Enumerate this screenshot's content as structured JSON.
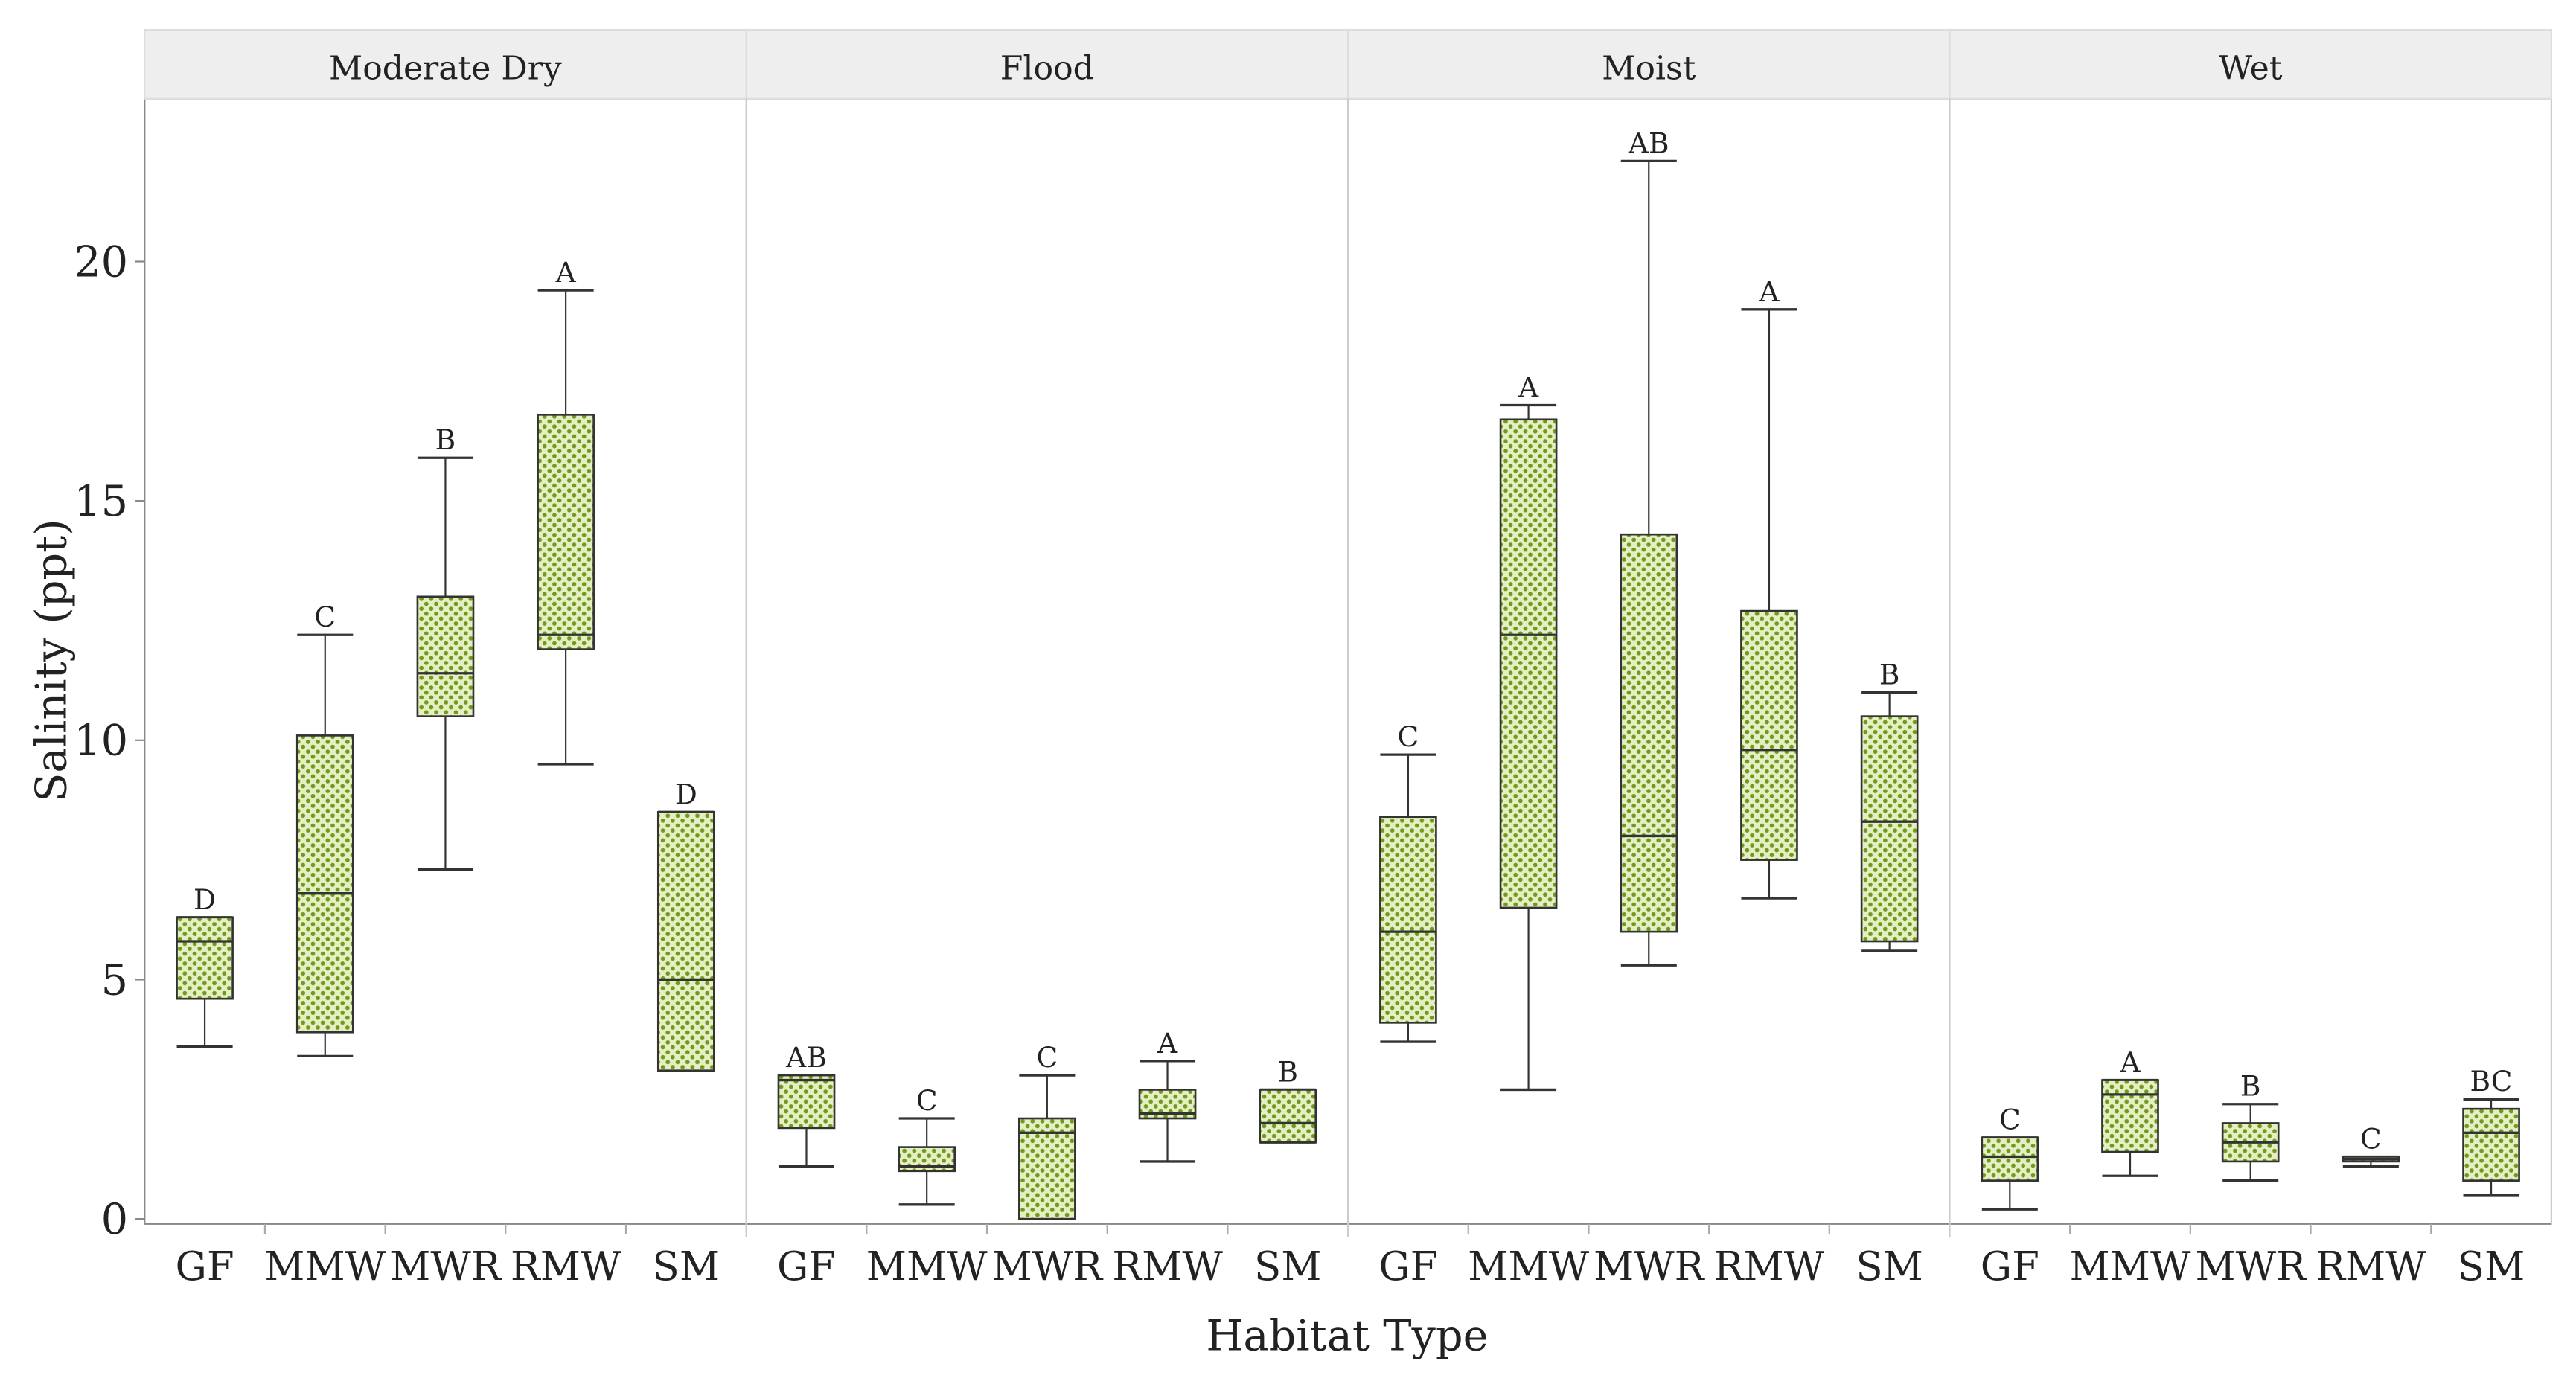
{
  "chart_data": {
    "type": "box",
    "xlabel": "Habitat Type",
    "ylabel": "Salinity (ppt)",
    "ylim": [
      0,
      23.4
    ],
    "yticks": [
      0,
      5,
      10,
      15,
      20
    ],
    "categories": [
      "GF",
      "MMW",
      "MWR",
      "RMW",
      "SM"
    ],
    "colors": {
      "box_fill": "#e6efc4",
      "dot": "#6f9a1c",
      "line": "#333333",
      "strip": "#eeeeee"
    },
    "panels": [
      {
        "name": "Moderate Dry",
        "boxes": [
          {
            "cat": "GF",
            "min": 3.6,
            "q1": 4.6,
            "median": 5.8,
            "q3": 6.3,
            "max": 6.3,
            "letter": "D"
          },
          {
            "cat": "MMW",
            "min": 3.4,
            "q1": 3.9,
            "median": 6.8,
            "q3": 10.1,
            "max": 12.2,
            "letter": "C"
          },
          {
            "cat": "MWR",
            "min": 7.3,
            "q1": 10.5,
            "median": 11.4,
            "q3": 13.0,
            "max": 15.9,
            "letter": "B"
          },
          {
            "cat": "RMW",
            "min": 9.5,
            "q1": 11.9,
            "median": 12.2,
            "q3": 16.8,
            "max": 19.4,
            "letter": "A"
          },
          {
            "cat": "SM",
            "min": 3.1,
            "q1": 3.1,
            "median": 5.0,
            "q3": 8.5,
            "max": 8.5,
            "letter": "D"
          }
        ]
      },
      {
        "name": "Flood",
        "boxes": [
          {
            "cat": "GF",
            "min": 1.1,
            "q1": 1.9,
            "median": 2.9,
            "q3": 3.0,
            "max": 3.0,
            "letter": "AB"
          },
          {
            "cat": "MMW",
            "min": 0.3,
            "q1": 1.0,
            "median": 1.1,
            "q3": 1.5,
            "max": 2.1,
            "letter": "C"
          },
          {
            "cat": "MWR",
            "min": 0.0,
            "q1": 0.0,
            "median": 1.8,
            "q3": 2.1,
            "max": 3.0,
            "letter": "C"
          },
          {
            "cat": "RMW",
            "min": 1.2,
            "q1": 2.1,
            "median": 2.2,
            "q3": 2.7,
            "max": 3.3,
            "letter": "A"
          },
          {
            "cat": "SM",
            "min": 1.6,
            "q1": 1.6,
            "median": 2.0,
            "q3": 2.7,
            "max": 2.7,
            "letter": "B"
          }
        ]
      },
      {
        "name": "Moist",
        "boxes": [
          {
            "cat": "GF",
            "min": 3.7,
            "q1": 4.1,
            "median": 6.0,
            "q3": 8.4,
            "max": 9.7,
            "letter": "C"
          },
          {
            "cat": "MMW",
            "min": 2.7,
            "q1": 6.5,
            "median": 12.2,
            "q3": 16.7,
            "max": 17.0,
            "letter": "A"
          },
          {
            "cat": "MWR",
            "min": 5.3,
            "q1": 6.0,
            "median": 8.0,
            "q3": 14.3,
            "max": 22.1,
            "letter": "AB"
          },
          {
            "cat": "RMW",
            "min": 6.7,
            "q1": 7.5,
            "median": 9.8,
            "q3": 12.7,
            "max": 19.0,
            "letter": "A"
          },
          {
            "cat": "SM",
            "min": 5.6,
            "q1": 5.8,
            "median": 8.3,
            "q3": 10.5,
            "max": 11.0,
            "letter": "B"
          }
        ]
      },
      {
        "name": "Wet",
        "boxes": [
          {
            "cat": "GF",
            "min": 0.2,
            "q1": 0.8,
            "median": 1.3,
            "q3": 1.7,
            "max": 1.7,
            "letter": "C"
          },
          {
            "cat": "MMW",
            "min": 0.9,
            "q1": 1.4,
            "median": 2.6,
            "q3": 2.9,
            "max": 2.9,
            "letter": "A"
          },
          {
            "cat": "MWR",
            "min": 0.8,
            "q1": 1.2,
            "median": 1.6,
            "q3": 2.0,
            "max": 2.4,
            "letter": "B"
          },
          {
            "cat": "RMW",
            "min": 1.1,
            "q1": 1.2,
            "median": 1.25,
            "q3": 1.3,
            "max": 1.3,
            "letter": "C"
          },
          {
            "cat": "SM",
            "min": 0.5,
            "q1": 0.8,
            "median": 1.8,
            "q3": 2.3,
            "max": 2.5,
            "letter": "BC"
          }
        ]
      }
    ]
  }
}
